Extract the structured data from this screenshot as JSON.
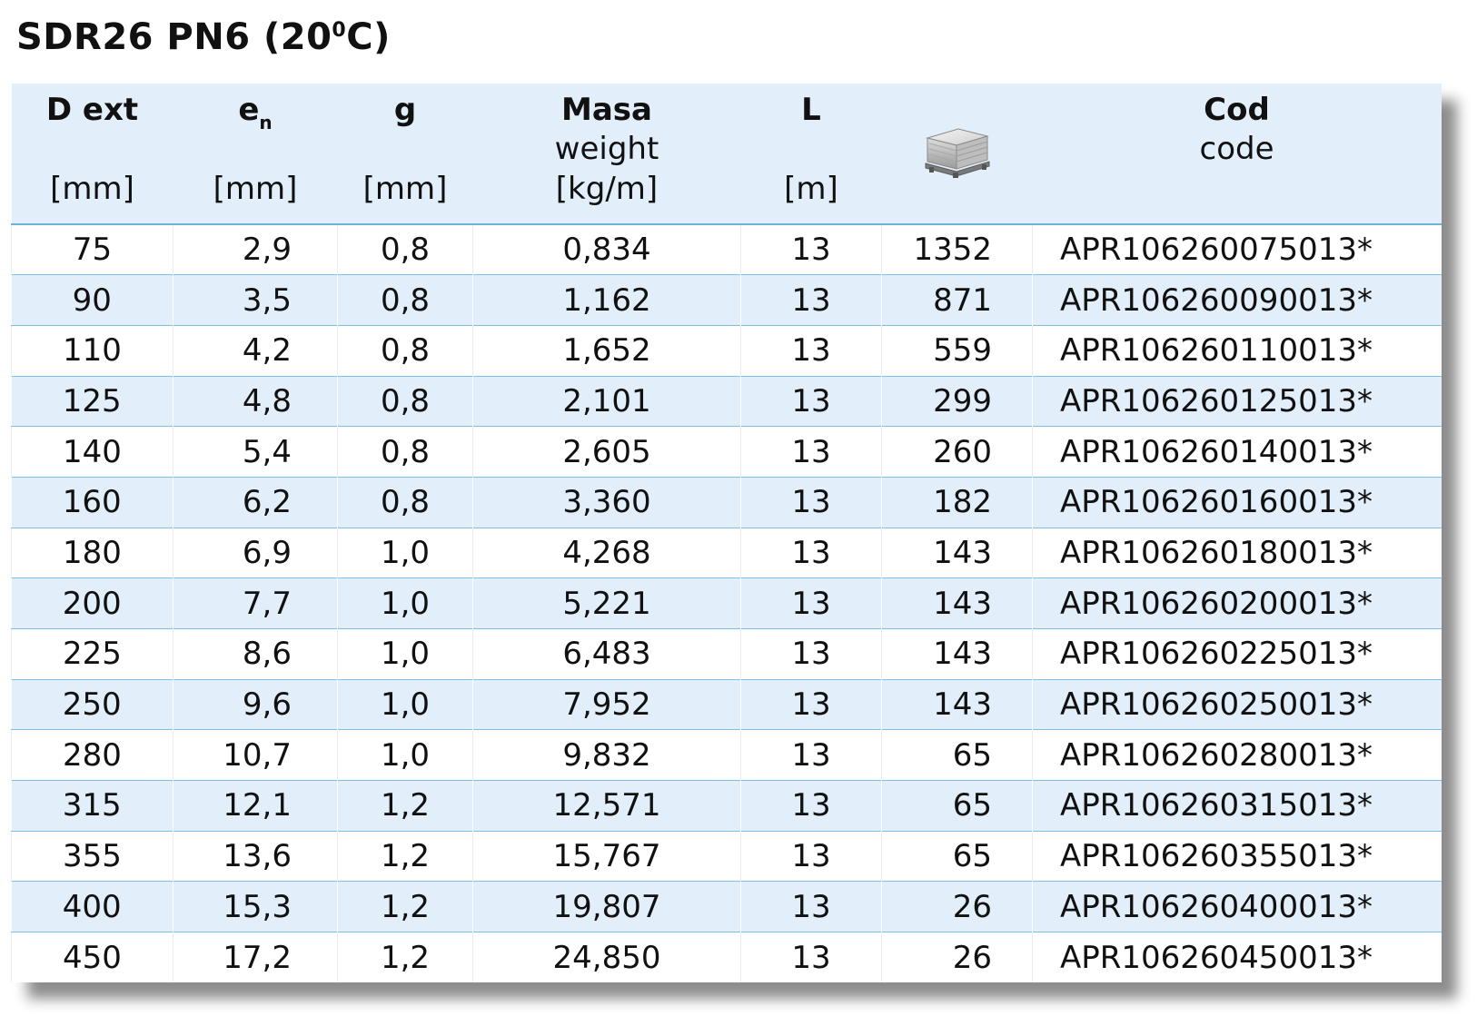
{
  "title": {
    "main": "SDR26 PN6 (20",
    "sup": "0",
    "end": "C)"
  },
  "header": {
    "dext": {
      "label": "D ext",
      "unit": "[mm]"
    },
    "en": {
      "label": "e",
      "sub": "n",
      "unit": "[mm]"
    },
    "g": {
      "label": "g",
      "unit": "[mm]"
    },
    "masa": {
      "label": "Masa",
      "sub_label": "weight",
      "unit": "[kg/m]"
    },
    "l": {
      "label": "L",
      "unit": "[m]"
    },
    "pallet_icon": "pallet-icon",
    "cod": {
      "label": "Cod",
      "sub_label": "code"
    }
  },
  "rows": [
    {
      "dext": "75",
      "en": "2,9",
      "g": "0,8",
      "masa": "0,834",
      "l": "13",
      "pallet": "1352",
      "code": "APR106260075013*"
    },
    {
      "dext": "90",
      "en": "3,5",
      "g": "0,8",
      "masa": "1,162",
      "l": "13",
      "pallet": "871",
      "code": "APR106260090013*"
    },
    {
      "dext": "110",
      "en": "4,2",
      "g": "0,8",
      "masa": "1,652",
      "l": "13",
      "pallet": "559",
      "code": "APR106260110013*"
    },
    {
      "dext": "125",
      "en": "4,8",
      "g": "0,8",
      "masa": "2,101",
      "l": "13",
      "pallet": "299",
      "code": "APR106260125013*"
    },
    {
      "dext": "140",
      "en": "5,4",
      "g": "0,8",
      "masa": "2,605",
      "l": "13",
      "pallet": "260",
      "code": "APR106260140013*"
    },
    {
      "dext": "160",
      "en": "6,2",
      "g": "0,8",
      "masa": "3,360",
      "l": "13",
      "pallet": "182",
      "code": "APR106260160013*"
    },
    {
      "dext": "180",
      "en": "6,9",
      "g": "1,0",
      "masa": "4,268",
      "l": "13",
      "pallet": "143",
      "code": "APR106260180013*"
    },
    {
      "dext": "200",
      "en": "7,7",
      "g": "1,0",
      "masa": "5,221",
      "l": "13",
      "pallet": "143",
      "code": "APR106260200013*"
    },
    {
      "dext": "225",
      "en": "8,6",
      "g": "1,0",
      "masa": "6,483",
      "l": "13",
      "pallet": "143",
      "code": "APR106260225013*"
    },
    {
      "dext": "250",
      "en": "9,6",
      "g": "1,0",
      "masa": "7,952",
      "l": "13",
      "pallet": "143",
      "code": "APR106260250013*"
    },
    {
      "dext": "280",
      "en": "10,7",
      "g": "1,0",
      "masa": "9,832",
      "l": "13",
      "pallet": "65",
      "code": "APR106260280013*"
    },
    {
      "dext": "315",
      "en": "12,1",
      "g": "1,2",
      "masa": "12,571",
      "l": "13",
      "pallet": "65",
      "code": "APR106260315013*"
    },
    {
      "dext": "355",
      "en": "13,6",
      "g": "1,2",
      "masa": "15,767",
      "l": "13",
      "pallet": "65",
      "code": "APR106260355013*"
    },
    {
      "dext": "400",
      "en": "15,3",
      "g": "1,2",
      "masa": "19,807",
      "l": "13",
      "pallet": "26",
      "code": "APR106260400013*"
    },
    {
      "dext": "450",
      "en": "17,2",
      "g": "1,2",
      "masa": "24,850",
      "l": "13",
      "pallet": "26",
      "code": "APR106260450013*"
    }
  ]
}
